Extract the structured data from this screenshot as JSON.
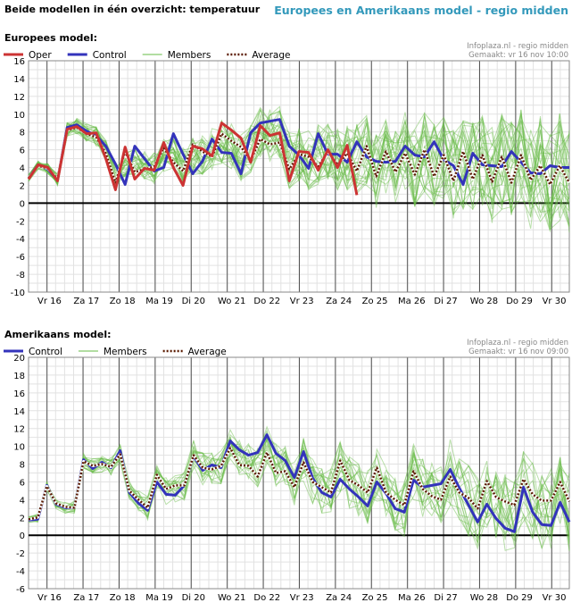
{
  "header": {
    "left_title": "Beide modellen in één overzicht: temperatuur",
    "right_title": "Europees en Amerikaans model - regio midden"
  },
  "day_labels": [
    "Vr 16",
    "Za 17",
    "Zo 18",
    "Ma 19",
    "Di 20",
    "Wo 21",
    "Do 22",
    "Vr 23",
    "Za 24",
    "Zo 25",
    "Ma 26",
    "Di 27",
    "Wo 28",
    "Do 29",
    "Vr 30"
  ],
  "colors": {
    "oper": "#cc3333",
    "control": "#3333bb",
    "members": "#66bb44",
    "average": "#5a1a00"
  },
  "charts": [
    {
      "section_title": "Europees model:",
      "source_line1": "Infoplaza.nl - regio midden",
      "source_line2": "Gemaakt: vr 16 nov 10:00",
      "legend": {
        "oper": "Oper",
        "control": "Control",
        "members": "Members",
        "average": "Average"
      },
      "chart_data": {
        "type": "line",
        "ylim": [
          -10,
          16
        ],
        "yticks": [
          -10,
          -8,
          -6,
          -4,
          -2,
          0,
          2,
          4,
          6,
          8,
          10,
          12,
          14,
          16
        ],
        "x_days": 15,
        "series": [
          {
            "name": "Oper",
            "values": [
              2.7,
              4.3,
              4.0,
              2.5,
              8.3,
              8.6,
              7.8,
              7.9,
              5.0,
              1.5,
              6.3,
              2.7,
              3.9,
              3.7,
              6.8,
              4.0,
              2.0,
              6.4,
              6.1,
              5.3,
              9.0,
              8.2,
              7.3,
              4.6,
              8.7,
              7.6,
              7.9,
              2.5,
              5.8,
              5.7,
              3.7,
              6.0,
              4.0,
              6.5,
              0.9
            ]
          },
          {
            "name": "Control",
            "values": [
              2.8,
              4.3,
              3.8,
              2.6,
              8.5,
              8.8,
              8.1,
              7.6,
              6.4,
              4.4,
              2.1,
              6.4,
              5.0,
              3.6,
              4.0,
              7.8,
              5.5,
              3.3,
              4.7,
              7.2,
              5.7,
              5.6,
              3.3,
              7.9,
              9.0,
              9.2,
              9.4,
              6.4,
              5.4,
              3.9,
              7.8,
              5.5,
              5.5,
              4.6,
              6.9,
              5.2,
              4.7,
              4.6,
              4.7,
              6.4,
              5.4,
              5.2,
              6.9,
              4.9,
              4.2,
              2.1,
              5.6,
              4.3,
              4.2,
              4.1,
              5.8,
              4.6,
              3.4,
              3.3,
              4.2,
              4.0,
              4.0
            ]
          },
          {
            "name": "Average",
            "values": [
              2.8,
              4.2,
              3.9,
              2.7,
              8.2,
              8.5,
              7.8,
              7.4,
              5.6,
              2.3,
              5.8,
              3.5,
              3.8,
              4.1,
              6.2,
              4.6,
              3.6,
              6.6,
              5.8,
              5.2,
              7.8,
              7.0,
              6.3,
              4.8,
              7.2,
              6.6,
              6.8,
              3.8,
              5.5,
              5.2,
              4.1,
              5.8,
              4.3,
              5.6,
              3.6,
              6.4,
              3.0,
              5.8,
              3.5,
              5.6,
              3.2,
              6.0,
              3.0,
              5.4,
              2.5,
              5.8,
              2.7,
              5.4,
              2.4,
              5.2,
              2.3,
              5.4,
              2.6,
              4.2,
              2.1,
              4.2,
              2.3
            ]
          }
        ]
      }
    },
    {
      "section_title": "Amerikaans model:",
      "source_line1": "Infoplaza.nl - regio midden",
      "source_line2": "Gemaakt: vr 16 nov 09:00",
      "legend": {
        "control": "Control",
        "members": "Members",
        "average": "Average"
      },
      "chart_data": {
        "type": "line",
        "ylim": [
          -6,
          20
        ],
        "yticks": [
          -6,
          -4,
          -2,
          0,
          2,
          4,
          6,
          8,
          10,
          12,
          14,
          16,
          18,
          20
        ],
        "x_days": 15,
        "series": [
          {
            "name": "Control",
            "values": [
              1.7,
              1.8,
              5.6,
              3.5,
              3.1,
              3.1,
              8.5,
              7.5,
              8.2,
              7.6,
              9.5,
              4.8,
              3.6,
              2.8,
              6.0,
              4.6,
              4.5,
              5.6,
              8.9,
              7.3,
              7.9,
              7.6,
              10.6,
              9.6,
              9.0,
              9.3,
              11.3,
              9.2,
              8.4,
              6.5,
              9.4,
              6.4,
              4.8,
              4.3,
              6.3,
              5.2,
              4.3,
              3.3,
              6.0,
              4.7,
              3.0,
              2.6,
              6.2,
              5.4,
              5.6,
              5.8,
              7.4,
              5.3,
              3.4,
              1.5,
              3.5,
              1.9,
              0.8,
              0.4,
              5.4,
              2.6,
              1.2,
              1.1,
              3.7,
              1.5
            ]
          },
          {
            "name": "Average",
            "values": [
              1.8,
              2.0,
              5.5,
              3.6,
              3.2,
              3.1,
              8.3,
              7.8,
              8.0,
              7.7,
              9.1,
              5.0,
              4.0,
              3.1,
              6.8,
              5.2,
              5.6,
              5.6,
              9.0,
              7.6,
              7.4,
              7.8,
              9.8,
              7.9,
              7.8,
              6.6,
              9.3,
              7.0,
              7.2,
              5.4,
              8.2,
              6.0,
              5.4,
              4.8,
              8.4,
              6.2,
              5.6,
              4.8,
              7.6,
              4.8,
              4.0,
              3.4,
              7.2,
              5.2,
              4.4,
              4.0,
              6.6,
              4.8,
              4.2,
              3.0,
              6.1,
              4.3,
              3.8,
              3.4,
              6.3,
              4.6,
              3.9,
              3.9,
              6.0,
              3.8
            ]
          }
        ]
      }
    }
  ]
}
